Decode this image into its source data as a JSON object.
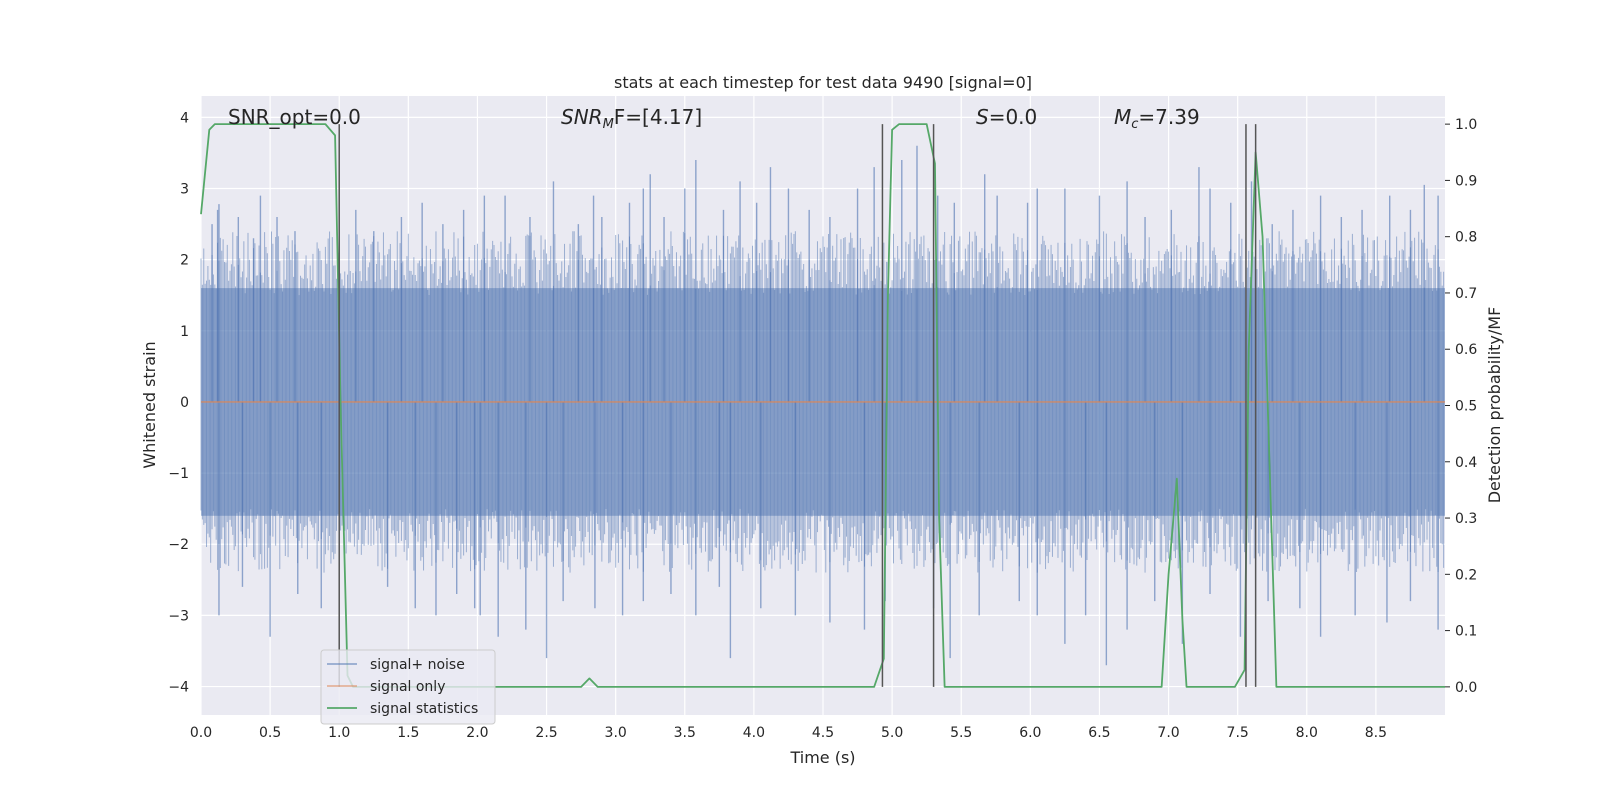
{
  "chart_data": {
    "type": "line",
    "title": "stats at each timestep for test data 9490 [signal=0]",
    "xlabel": "Time (s)",
    "ylabel_left": "Whitened strain",
    "ylabel_right": "Detection probability/MF",
    "xlim": [
      0.0,
      9.0
    ],
    "ylim_left": [
      -4.4,
      4.3
    ],
    "ylim_right": [
      -0.05,
      1.05
    ],
    "xticks": [
      0.0,
      0.5,
      1.0,
      1.5,
      2.0,
      2.5,
      3.0,
      3.5,
      4.0,
      4.5,
      5.0,
      5.5,
      6.0,
      6.5,
      7.0,
      7.5,
      8.0,
      8.5
    ],
    "xtick_labels": [
      "0.0",
      "0.5",
      "1.0",
      "1.5",
      "2.0",
      "2.5",
      "3.0",
      "3.5",
      "4.0",
      "4.5",
      "5.0",
      "5.5",
      "6.0",
      "6.5",
      "7.0",
      "7.5",
      "8.0",
      "8.5"
    ],
    "yticks_left": [
      -4,
      -3,
      -2,
      -1,
      0,
      1,
      2,
      3,
      4
    ],
    "ytick_labels_left": [
      "−4",
      "−3",
      "−2",
      "−1",
      "0",
      "1",
      "2",
      "3",
      "4"
    ],
    "yticks_right": [
      0.0,
      0.1,
      0.2,
      0.3,
      0.4,
      0.5,
      0.6,
      0.7,
      0.8,
      0.9,
      1.0
    ],
    "ytick_labels_right": [
      "0.0",
      "0.1",
      "0.2",
      "0.3",
      "0.4",
      "0.5",
      "0.6",
      "0.7",
      "0.8",
      "0.9",
      "1.0"
    ],
    "grid": true,
    "legend_position": "lower-left",
    "annotations": {
      "snr_opt": "SNR_opt=0.0",
      "snr_mf_prefix": "SNR",
      "snr_mf_sub": "M",
      "snr_mf_suffix": "F=[4.17]",
      "s_prefix": "S",
      "s_suffix": "=0.0",
      "mc_prefix": "M",
      "mc_sub": "c",
      "mc_suffix": "=7.39"
    },
    "vertical_markers": [
      1.0,
      4.93,
      5.3,
      7.56,
      7.63
    ],
    "series": [
      {
        "name": "signal+ noise",
        "color": "#4c72b0",
        "axis": "left",
        "style": "dense-noise",
        "typical_range": [
          -1.6,
          1.6
        ],
        "spikes_top": [
          [
            0.08,
            2.5
          ],
          [
            0.12,
            2.7
          ],
          [
            0.13,
            2.78
          ],
          [
            0.27,
            2.6
          ],
          [
            0.38,
            2.3
          ],
          [
            0.43,
            2.9
          ],
          [
            0.55,
            2.6
          ],
          [
            0.68,
            2.4
          ],
          [
            1.12,
            2.7
          ],
          [
            1.25,
            2.4
          ],
          [
            1.45,
            2.6
          ],
          [
            1.6,
            2.8
          ],
          [
            1.75,
            2.5
          ],
          [
            1.9,
            2.7
          ],
          [
            2.05,
            2.9
          ],
          [
            2.2,
            2.9
          ],
          [
            2.38,
            2.6
          ],
          [
            2.55,
            3.1
          ],
          [
            2.73,
            2.5
          ],
          [
            2.84,
            2.9
          ],
          [
            2.9,
            2.6
          ],
          [
            3.1,
            2.8
          ],
          [
            3.2,
            3.0
          ],
          [
            3.25,
            3.2
          ],
          [
            3.35,
            2.6
          ],
          [
            3.5,
            3.0
          ],
          [
            3.58,
            3.4
          ],
          [
            3.78,
            2.7
          ],
          [
            3.9,
            3.1
          ],
          [
            4.02,
            2.8
          ],
          [
            4.12,
            3.3
          ],
          [
            4.25,
            3.0
          ],
          [
            4.4,
            2.7
          ],
          [
            4.55,
            2.6
          ],
          [
            4.75,
            3.0
          ],
          [
            4.87,
            3.3
          ],
          [
            5.07,
            3.4
          ],
          [
            5.18,
            3.6
          ],
          [
            5.33,
            2.9
          ],
          [
            5.45,
            2.8
          ],
          [
            5.67,
            3.2
          ],
          [
            5.76,
            2.9
          ],
          [
            5.98,
            2.8
          ],
          [
            6.05,
            3.0
          ],
          [
            6.25,
            3.0
          ],
          [
            6.5,
            2.9
          ],
          [
            6.7,
            3.1
          ],
          [
            6.83,
            2.6
          ],
          [
            7.02,
            2.7
          ],
          [
            7.22,
            3.3
          ],
          [
            7.3,
            3.0
          ],
          [
            7.45,
            2.8
          ],
          [
            7.6,
            3.1
          ],
          [
            7.75,
            2.5
          ],
          [
            7.9,
            2.7
          ],
          [
            8.1,
            2.9
          ],
          [
            8.25,
            2.6
          ],
          [
            8.4,
            2.7
          ],
          [
            8.6,
            2.9
          ],
          [
            8.75,
            2.7
          ],
          [
            8.85,
            3.05
          ],
          [
            8.95,
            2.9
          ]
        ],
        "spikes_bottom": [
          [
            0.13,
            -3.0
          ],
          [
            0.3,
            -2.6
          ],
          [
            0.5,
            -3.3
          ],
          [
            0.7,
            -2.7
          ],
          [
            0.87,
            -2.9
          ],
          [
            1.35,
            -2.6
          ],
          [
            1.55,
            -2.9
          ],
          [
            1.7,
            -3.0
          ],
          [
            1.85,
            -2.7
          ],
          [
            1.98,
            -2.9
          ],
          [
            2.02,
            -3.0
          ],
          [
            2.15,
            -3.3
          ],
          [
            2.35,
            -3.2
          ],
          [
            2.5,
            -3.6
          ],
          [
            2.62,
            -2.8
          ],
          [
            2.85,
            -2.9
          ],
          [
            3.05,
            -3.0
          ],
          [
            3.2,
            -2.8
          ],
          [
            3.4,
            -2.7
          ],
          [
            3.58,
            -3.0
          ],
          [
            3.75,
            -2.6
          ],
          [
            3.83,
            -3.6
          ],
          [
            4.05,
            -2.9
          ],
          [
            4.3,
            -3.0
          ],
          [
            4.55,
            -3.1
          ],
          [
            4.8,
            -3.2
          ],
          [
            4.95,
            -2.8
          ],
          [
            5.3,
            -2.9
          ],
          [
            5.42,
            -3.6
          ],
          [
            5.63,
            -3.0
          ],
          [
            5.92,
            -2.8
          ],
          [
            6.05,
            -3.0
          ],
          [
            6.25,
            -3.4
          ],
          [
            6.4,
            -3.0
          ],
          [
            6.55,
            -3.7
          ],
          [
            6.7,
            -3.2
          ],
          [
            6.9,
            -2.8
          ],
          [
            7.1,
            -3.4
          ],
          [
            7.3,
            -2.7
          ],
          [
            7.52,
            -3.3
          ],
          [
            7.72,
            -2.8
          ],
          [
            7.95,
            -2.9
          ],
          [
            8.1,
            -3.3
          ],
          [
            8.35,
            -3.0
          ],
          [
            8.58,
            -3.1
          ],
          [
            8.75,
            -2.8
          ],
          [
            8.95,
            -3.2
          ]
        ]
      },
      {
        "name": "signal only",
        "color": "#dd8452",
        "axis": "left",
        "x": [
          0.0,
          9.0
        ],
        "y": [
          0.0,
          0.0
        ]
      },
      {
        "name": "signal statistics",
        "color": "#55a868",
        "axis": "right",
        "x": [
          0.0,
          0.06,
          0.1,
          0.2,
          0.9,
          0.97,
          1.01,
          1.06,
          1.1,
          1.15,
          2.7,
          2.75,
          2.81,
          2.87,
          2.95,
          4.87,
          4.94,
          4.97,
          5.0,
          5.05,
          5.1,
          5.25,
          5.31,
          5.34,
          5.38,
          5.45,
          6.95,
          7.0,
          7.06,
          7.1,
          7.13,
          7.2,
          7.48,
          7.55,
          7.58,
          7.63,
          7.68,
          7.73,
          7.78,
          9.0
        ],
        "y": [
          0.84,
          0.99,
          1.0,
          1.0,
          1.0,
          0.98,
          0.5,
          0.02,
          0.0,
          0.0,
          0.0,
          0.0,
          0.015,
          0.0,
          0.0,
          0.0,
          0.05,
          0.7,
          0.99,
          1.0,
          1.0,
          1.0,
          0.93,
          0.3,
          0.0,
          0.0,
          0.0,
          0.2,
          0.37,
          0.12,
          0.0,
          0.0,
          0.0,
          0.03,
          0.6,
          0.95,
          0.8,
          0.4,
          0.0,
          0.0
        ]
      }
    ]
  }
}
